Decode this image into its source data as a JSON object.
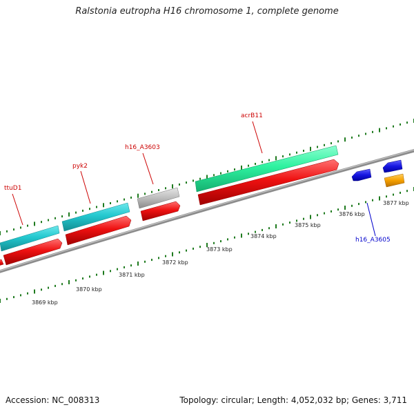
{
  "title": "Ralstonia eutropha H16 chromosome 1, complete genome",
  "footer": {
    "accession": "Accession: NC_008313",
    "summary": "Topology: circular; Length: 4,052,032 bp; Genes: 3,711"
  },
  "colors": {
    "backbone": "#8c8c8c",
    "ruler_ticks": "#1e7a1e",
    "cds": "#ee1111",
    "gene_teal": "#23c8cf",
    "gene_green": "#2ef2a0",
    "gene_gray": "#bdbdbd",
    "gene_blue": "#1515e0",
    "gene_orange": "#f5a000",
    "label_red": "#cc0000",
    "label_blue": "#0000cc"
  },
  "ruler": {
    "unit": "kbp",
    "labels": [
      "3869 kbp",
      "3870 kbp",
      "3871 kbp",
      "3872 kbp",
      "3873 kbp",
      "3874 kbp",
      "3875 kbp",
      "3876 kbp",
      "3877 kbp"
    ]
  },
  "gene_labels": {
    "ttuD1": "ttuD1",
    "pyk2": "pyk2",
    "h16_A3603": "h16_A3603",
    "acrB11": "acrB11",
    "h16_A3605": "h16_A3605"
  }
}
